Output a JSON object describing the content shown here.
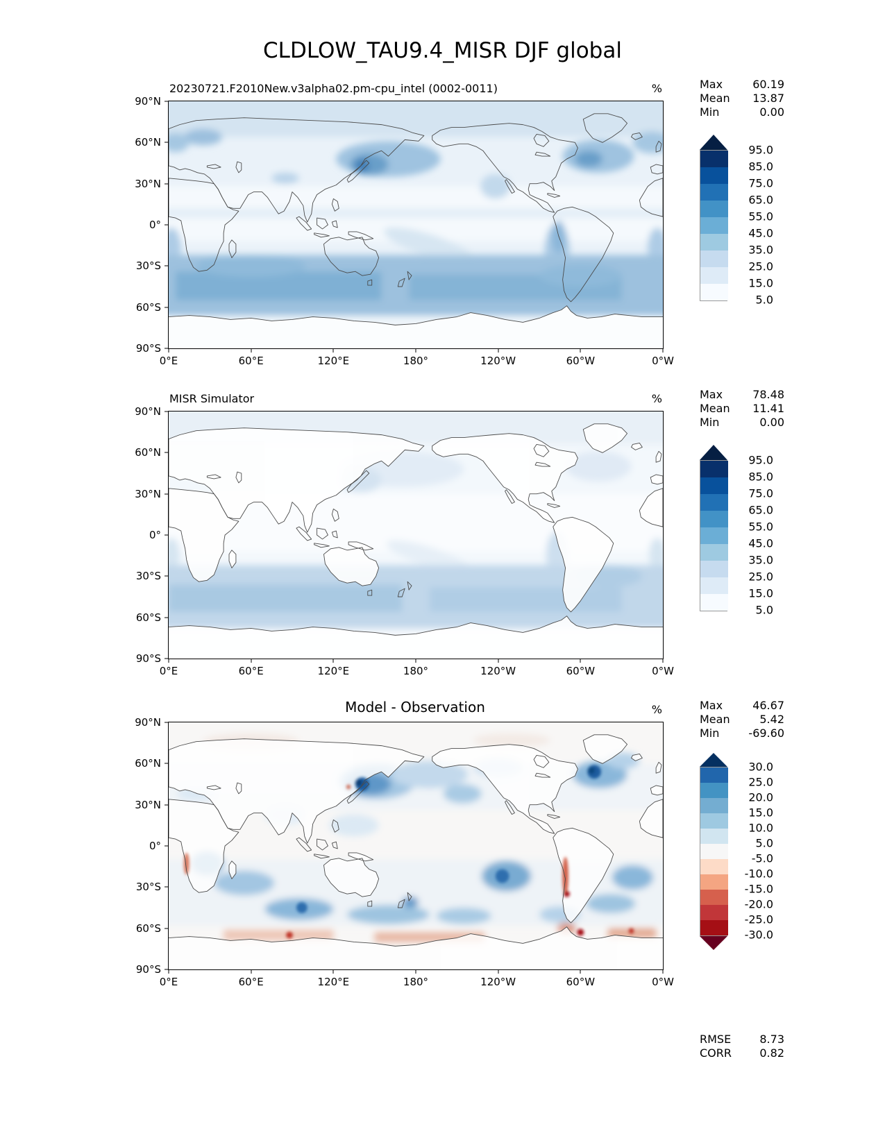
{
  "chart_data": {
    "type": "heatmap",
    "subtype": "filled_contour_global_maps",
    "figure_title": "CLDLOW_TAU9.4_MISR DJF global",
    "layout": {
      "rows": 3,
      "projection": "equirectangular global map, 180 deg (Pacific) centered",
      "grid": false,
      "colorbar_position": "right",
      "colorbar_extend": "both"
    },
    "x_tick_labels": [
      "0°E",
      "60°E",
      "120°E",
      "180°",
      "120°W",
      "60°W",
      "0°W"
    ],
    "y_tick_labels": [
      "90°N",
      "60°N",
      "30°N",
      "0°",
      "30°S",
      "60°S",
      "90°S"
    ],
    "panels": [
      {
        "name": "model",
        "title": "20230721.F2010New.v3alpha02.pm-cpu_intel (0002-0011)",
        "units": "%",
        "stats": [
          {
            "label": "Max",
            "value": "60.19"
          },
          {
            "label": "Mean",
            "value": "13.87"
          },
          {
            "label": "Min",
            "value": "0.00"
          }
        ],
        "colorbar": {
          "tick_labels": [
            "95.0",
            "85.0",
            "75.0",
            "65.0",
            "55.0",
            "45.0",
            "35.0",
            "25.0",
            "15.0",
            "5.0"
          ],
          "segment_colors_top_to_bottom": [
            "#08306b",
            "#08519c",
            "#2171b5",
            "#4292c6",
            "#6baed6",
            "#9ecae1",
            "#c6dbef",
            "#deebf7",
            "#f7fbff"
          ],
          "extend_above_color": "#061f43",
          "extend_below_color": "#ffffff"
        }
      },
      {
        "name": "observation",
        "title": "MISR Simulator",
        "units": "%",
        "stats": [
          {
            "label": "Max",
            "value": "78.48"
          },
          {
            "label": "Mean",
            "value": "11.41"
          },
          {
            "label": "Min",
            "value": "0.00"
          }
        ],
        "colorbar": {
          "tick_labels": [
            "95.0",
            "85.0",
            "75.0",
            "65.0",
            "55.0",
            "45.0",
            "35.0",
            "25.0",
            "15.0",
            "5.0"
          ],
          "segment_colors_top_to_bottom": [
            "#08306b",
            "#08519c",
            "#2171b5",
            "#4292c6",
            "#6baed6",
            "#9ecae1",
            "#c6dbef",
            "#deebf7",
            "#f7fbff"
          ],
          "extend_above_color": "#061f43",
          "extend_below_color": "#ffffff"
        }
      },
      {
        "name": "difference",
        "title": "Model - Observation",
        "units": "%",
        "stats": [
          {
            "label": "Max",
            "value": "46.67"
          },
          {
            "label": "Mean",
            "value": "5.42"
          },
          {
            "label": "Min",
            "value": "-69.60"
          }
        ],
        "colorbar": {
          "tick_labels": [
            "30.0",
            "25.0",
            "20.0",
            "15.0",
            "10.0",
            "5.0",
            "-5.0",
            "-10.0",
            "-15.0",
            "-20.0",
            "-25.0",
            "-30.0"
          ],
          "segment_colors_top_to_bottom": [
            "#2166ac",
            "#4393c3",
            "#74add1",
            "#9ec9e1",
            "#d1e5f0",
            "#f7f7f7",
            "#fddbc7",
            "#f4a582",
            "#d6604d",
            "#c13639",
            "#a50f15"
          ],
          "extend_above_color": "#053061",
          "extend_below_color": "#67001f"
        },
        "metrics": [
          {
            "label": "RMSE",
            "value": "8.73"
          },
          {
            "label": "CORR",
            "value": "0.82"
          }
        ]
      }
    ]
  }
}
